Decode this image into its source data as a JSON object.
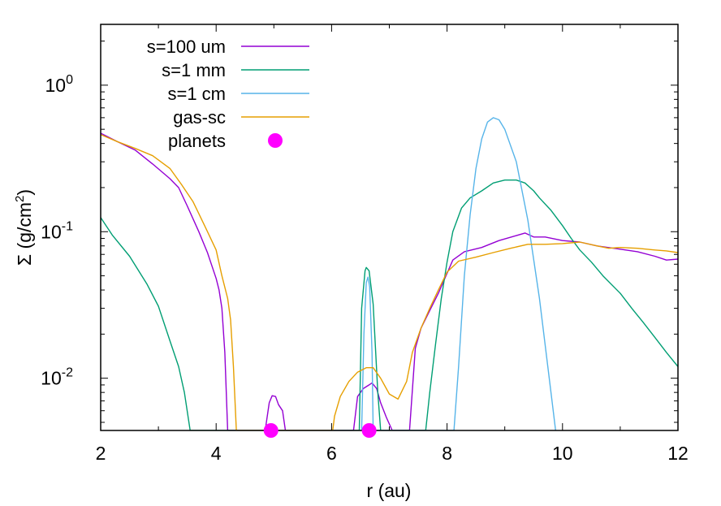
{
  "chart_data": {
    "type": "line",
    "title": "",
    "xlabel": "r (au)",
    "ylabel": "Σ (g/cm",
    "ylabel_sup": "2",
    "ylabel_close": ")",
    "xlim": [
      2,
      12
    ],
    "ylim": [
      0.0044,
      2.6
    ],
    "yscale": "log",
    "grid": false,
    "legend_position": "top-left",
    "x_ticks": [
      2,
      4,
      6,
      8,
      10,
      12
    ],
    "x_tick_labels": [
      "2",
      "4",
      "6",
      "8",
      "10",
      "12"
    ],
    "y_ticks": [
      {
        "value": 1,
        "base": "10",
        "exp": "0"
      },
      {
        "value": 0.1,
        "base": "10",
        "exp": "-1"
      },
      {
        "value": 0.01,
        "base": "10",
        "exp": "-2"
      }
    ],
    "series": [
      {
        "name": "s=100 um",
        "color": "#9400d3",
        "points": [
          [
            2.0,
            0.47
          ],
          [
            2.3,
            0.41
          ],
          [
            2.6,
            0.36
          ],
          [
            2.9,
            0.29
          ],
          [
            3.2,
            0.23
          ],
          [
            3.35,
            0.2
          ],
          [
            3.5,
            0.15
          ],
          [
            3.7,
            0.1
          ],
          [
            3.85,
            0.072
          ],
          [
            4.0,
            0.048
          ],
          [
            4.05,
            0.04
          ],
          [
            4.1,
            0.03
          ],
          [
            4.15,
            0.015
          ],
          [
            4.2,
            0.0044
          ],
          [
            4.85,
            0.0044
          ],
          [
            4.92,
            0.0068
          ],
          [
            4.97,
            0.0076
          ],
          [
            5.03,
            0.0075
          ],
          [
            5.08,
            0.0066
          ],
          [
            5.15,
            0.006
          ],
          [
            5.2,
            0.0044
          ],
          [
            6.38,
            0.0044
          ],
          [
            6.45,
            0.0075
          ],
          [
            6.55,
            0.0085
          ],
          [
            6.65,
            0.009
          ],
          [
            6.7,
            0.0093
          ],
          [
            6.78,
            0.0085
          ],
          [
            6.85,
            0.0068
          ],
          [
            6.95,
            0.0054
          ],
          [
            7.05,
            0.0044
          ],
          [
            7.35,
            0.0044
          ],
          [
            7.45,
            0.016
          ],
          [
            7.55,
            0.022
          ],
          [
            7.7,
            0.029
          ],
          [
            7.85,
            0.038
          ],
          [
            8.0,
            0.052
          ],
          [
            8.1,
            0.064
          ],
          [
            8.3,
            0.073
          ],
          [
            8.6,
            0.078
          ],
          [
            8.9,
            0.087
          ],
          [
            9.2,
            0.094
          ],
          [
            9.35,
            0.098
          ],
          [
            9.5,
            0.092
          ],
          [
            9.7,
            0.092
          ],
          [
            10.0,
            0.087
          ],
          [
            10.3,
            0.085
          ],
          [
            10.6,
            0.08
          ],
          [
            11.0,
            0.076
          ],
          [
            11.3,
            0.073
          ],
          [
            11.6,
            0.068
          ],
          [
            11.8,
            0.064
          ],
          [
            12.0,
            0.065
          ]
        ]
      },
      {
        "name": "s=1 mm",
        "color": "#009e73",
        "points": [
          [
            2.0,
            0.125
          ],
          [
            2.2,
            0.095
          ],
          [
            2.5,
            0.068
          ],
          [
            2.8,
            0.044
          ],
          [
            3.0,
            0.031
          ],
          [
            3.2,
            0.018
          ],
          [
            3.35,
            0.012
          ],
          [
            3.45,
            0.008
          ],
          [
            3.55,
            0.0044
          ],
          [
            6.48,
            0.0044
          ],
          [
            6.52,
            0.03
          ],
          [
            6.58,
            0.054
          ],
          [
            6.6,
            0.057
          ],
          [
            6.65,
            0.054
          ],
          [
            6.72,
            0.032
          ],
          [
            6.8,
            0.008
          ],
          [
            6.85,
            0.0044
          ],
          [
            7.63,
            0.0044
          ],
          [
            7.7,
            0.008
          ],
          [
            7.8,
            0.017
          ],
          [
            7.9,
            0.035
          ],
          [
            8.0,
            0.062
          ],
          [
            8.1,
            0.1
          ],
          [
            8.25,
            0.145
          ],
          [
            8.4,
            0.17
          ],
          [
            8.6,
            0.19
          ],
          [
            8.8,
            0.215
          ],
          [
            9.0,
            0.225
          ],
          [
            9.2,
            0.225
          ],
          [
            9.35,
            0.215
          ],
          [
            9.5,
            0.19
          ],
          [
            9.6,
            0.17
          ],
          [
            9.8,
            0.14
          ],
          [
            10.0,
            0.11
          ],
          [
            10.15,
            0.09
          ],
          [
            10.3,
            0.075
          ],
          [
            10.5,
            0.062
          ],
          [
            10.7,
            0.05
          ],
          [
            11.0,
            0.038
          ],
          [
            11.2,
            0.03
          ],
          [
            11.4,
            0.024
          ],
          [
            11.6,
            0.019
          ],
          [
            11.8,
            0.015
          ],
          [
            12.0,
            0.012
          ]
        ]
      },
      {
        "name": "s=1 cm",
        "color": "#56b4e9",
        "points": [
          [
            6.52,
            0.0044
          ],
          [
            6.56,
            0.02
          ],
          [
            6.6,
            0.045
          ],
          [
            6.63,
            0.049
          ],
          [
            6.66,
            0.042
          ],
          [
            6.7,
            0.015
          ],
          [
            6.72,
            0.0044
          ],
          [
            8.12,
            0.0044
          ],
          [
            8.2,
            0.012
          ],
          [
            8.3,
            0.05
          ],
          [
            8.4,
            0.13
          ],
          [
            8.5,
            0.27
          ],
          [
            8.6,
            0.43
          ],
          [
            8.7,
            0.56
          ],
          [
            8.8,
            0.6
          ],
          [
            8.9,
            0.58
          ],
          [
            9.0,
            0.5
          ],
          [
            9.2,
            0.3
          ],
          [
            9.4,
            0.12
          ],
          [
            9.6,
            0.035
          ],
          [
            9.8,
            0.008
          ],
          [
            9.88,
            0.0044
          ]
        ]
      },
      {
        "name": "gas-sc",
        "color": "#e69f00",
        "points": [
          [
            2.0,
            0.46
          ],
          [
            2.3,
            0.41
          ],
          [
            2.6,
            0.37
          ],
          [
            2.9,
            0.33
          ],
          [
            3.2,
            0.27
          ],
          [
            3.4,
            0.21
          ],
          [
            3.6,
            0.16
          ],
          [
            3.8,
            0.11
          ],
          [
            4.0,
            0.075
          ],
          [
            4.1,
            0.05
          ],
          [
            4.2,
            0.035
          ],
          [
            4.25,
            0.025
          ],
          [
            4.3,
            0.012
          ],
          [
            4.35,
            0.0044
          ],
          [
            6.02,
            0.0044
          ],
          [
            6.05,
            0.0055
          ],
          [
            6.15,
            0.0075
          ],
          [
            6.3,
            0.0095
          ],
          [
            6.45,
            0.011
          ],
          [
            6.6,
            0.0118
          ],
          [
            6.72,
            0.0118
          ],
          [
            6.85,
            0.01
          ],
          [
            7.0,
            0.0078
          ],
          [
            7.15,
            0.0072
          ],
          [
            7.3,
            0.0095
          ],
          [
            7.4,
            0.015
          ],
          [
            7.55,
            0.022
          ],
          [
            7.7,
            0.03
          ],
          [
            7.85,
            0.04
          ],
          [
            8.0,
            0.053
          ],
          [
            8.2,
            0.063
          ],
          [
            8.5,
            0.067
          ],
          [
            8.8,
            0.072
          ],
          [
            9.1,
            0.077
          ],
          [
            9.4,
            0.082
          ],
          [
            9.7,
            0.082
          ],
          [
            10.0,
            0.083
          ],
          [
            10.3,
            0.085
          ],
          [
            10.6,
            0.08
          ],
          [
            10.8,
            0.077
          ],
          [
            11.0,
            0.078
          ],
          [
            11.3,
            0.077
          ],
          [
            11.6,
            0.075
          ],
          [
            11.8,
            0.074
          ],
          [
            12.0,
            0.072
          ]
        ]
      }
    ],
    "planets": {
      "name": "planets",
      "color": "#ff00ff",
      "points": [
        [
          4.95,
          0.0044
        ],
        [
          6.65,
          0.0044
        ]
      ]
    }
  }
}
